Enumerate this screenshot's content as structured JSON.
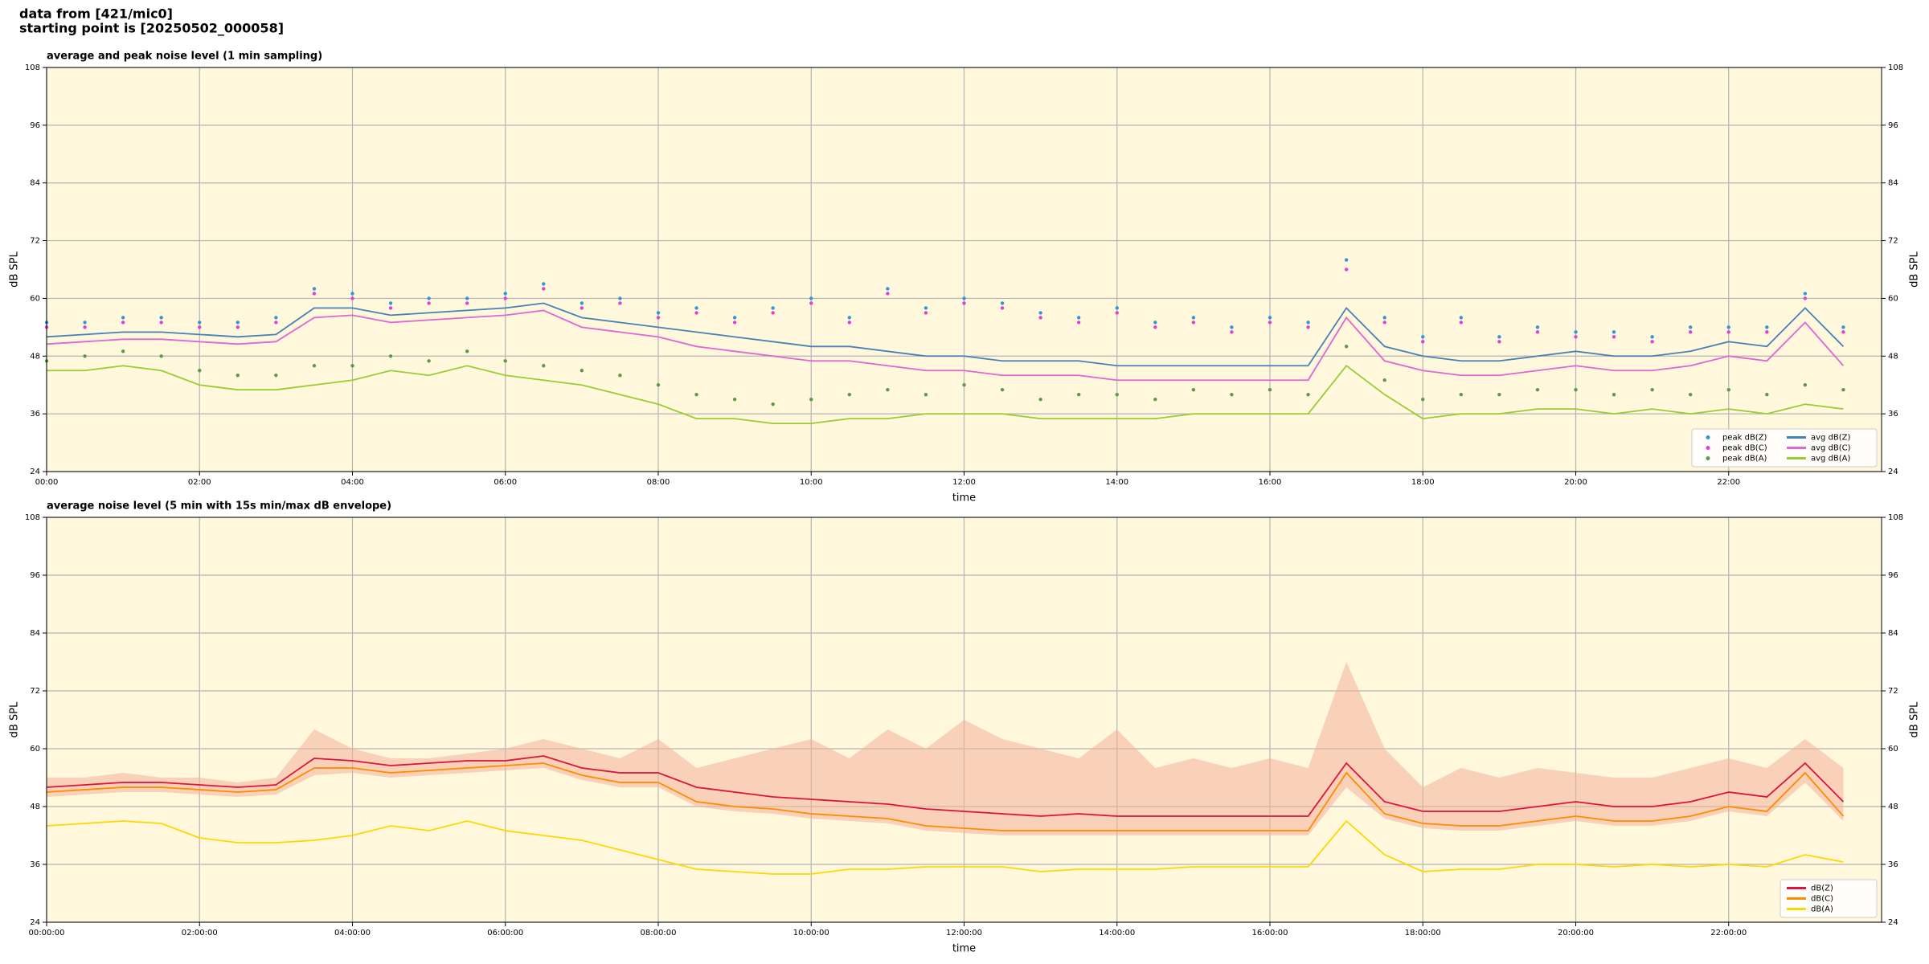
{
  "header": {
    "line1": "data from [421/mic0]",
    "line2": "starting point is [20250502_000058]"
  },
  "chart_data": [
    {
      "type": "line",
      "title": "average and peak noise level (1 min sampling)",
      "x_label": "time",
      "y_label": "dB SPL",
      "xlim": [
        0,
        24
      ],
      "ylim": [
        24,
        108
      ],
      "yticks": [
        24,
        36,
        48,
        60,
        72,
        84,
        96,
        108
      ],
      "xticks": [
        {
          "value": 0,
          "label": "00:00"
        },
        {
          "value": 2,
          "label": "02:00"
        },
        {
          "value": 4,
          "label": "04:00"
        },
        {
          "value": 6,
          "label": "06:00"
        },
        {
          "value": 8,
          "label": "08:00"
        },
        {
          "value": 10,
          "label": "10:00"
        },
        {
          "value": 12,
          "label": "12:00"
        },
        {
          "value": 14,
          "label": "14:00"
        },
        {
          "value": 16,
          "label": "16:00"
        },
        {
          "value": 18,
          "label": "18:00"
        },
        {
          "value": 20,
          "label": "20:00"
        },
        {
          "value": 22,
          "label": "22:00"
        }
      ],
      "grid": true,
      "legend": "lower right",
      "legend_columns": 2,
      "background": "#fff8dc",
      "x": [
        0,
        0.5,
        1,
        1.5,
        2,
        2.5,
        3,
        3.5,
        4,
        4.5,
        5,
        5.5,
        6,
        6.5,
        7,
        7.5,
        8,
        8.5,
        9,
        9.5,
        10,
        10.5,
        11,
        11.5,
        12,
        12.5,
        13,
        13.5,
        14,
        14.5,
        15,
        15.5,
        16,
        16.5,
        17,
        17.5,
        18,
        18.5,
        19,
        19.5,
        20,
        20.5,
        21,
        21.5,
        22,
        22.5,
        23,
        23.5
      ],
      "series": [
        {
          "name": "peak dB(Z)",
          "mark": "point",
          "color": "#2c9ad8",
          "values": [
            55,
            55,
            56,
            56,
            55,
            55,
            56,
            62,
            61,
            59,
            60,
            60,
            61,
            63,
            59,
            60,
            57,
            58,
            56,
            58,
            60,
            56,
            62,
            58,
            60,
            59,
            57,
            56,
            58,
            55,
            56,
            54,
            56,
            55,
            68,
            56,
            52,
            56,
            52,
            54,
            53,
            53,
            52,
            54,
            54,
            54,
            61,
            54
          ]
        },
        {
          "name": "peak dB(C)",
          "mark": "point",
          "color": "#e040d8",
          "values": [
            54,
            54,
            55,
            55,
            54,
            54,
            55,
            61,
            60,
            58,
            59,
            59,
            60,
            62,
            58,
            59,
            56,
            57,
            55,
            57,
            59,
            55,
            61,
            57,
            59,
            58,
            56,
            55,
            57,
            54,
            55,
            53,
            55,
            54,
            66,
            55,
            51,
            55,
            51,
            53,
            52,
            52,
            51,
            53,
            53,
            53,
            60,
            53
          ]
        },
        {
          "name": "peak dB(A)",
          "mark": "point",
          "color": "#5a9a4a",
          "values": [
            47,
            48,
            49,
            48,
            45,
            44,
            44,
            46,
            46,
            48,
            47,
            49,
            47,
            46,
            45,
            44,
            42,
            40,
            39,
            38,
            39,
            40,
            41,
            40,
            42,
            41,
            39,
            40,
            40,
            39,
            41,
            40,
            41,
            40,
            50,
            43,
            39,
            40,
            40,
            41,
            41,
            40,
            41,
            40,
            41,
            40,
            42,
            41
          ]
        },
        {
          "name": "avg dB(Z)",
          "mark": "line",
          "color": "#4682b4",
          "values": [
            52,
            52.5,
            53,
            53,
            52.5,
            52,
            52.5,
            58,
            58,
            56.5,
            57,
            57.5,
            58,
            59,
            56,
            55,
            54,
            53,
            52,
            51,
            50,
            50,
            49,
            48,
            48,
            47,
            47,
            47,
            46,
            46,
            46,
            46,
            46,
            46,
            58,
            50,
            48,
            47,
            47,
            48,
            49,
            48,
            48,
            49,
            51,
            50,
            58,
            50
          ]
        },
        {
          "name": "avg dB(C)",
          "mark": "line",
          "color": "#e066d0",
          "values": [
            50.5,
            51,
            51.5,
            51.5,
            51,
            50.5,
            51,
            56,
            56.5,
            55,
            55.5,
            56,
            56.5,
            57.5,
            54,
            53,
            52,
            50,
            49,
            48,
            47,
            47,
            46,
            45,
            45,
            44,
            44,
            44,
            43,
            43,
            43,
            43,
            43,
            43,
            56,
            47,
            45,
            44,
            44,
            45,
            46,
            45,
            45,
            46,
            48,
            47,
            55,
            46
          ]
        },
        {
          "name": "avg dB(A)",
          "mark": "line",
          "color": "#9acd32",
          "values": [
            45,
            45,
            46,
            45,
            42,
            41,
            41,
            42,
            43,
            45,
            44,
            46,
            44,
            43,
            42,
            40,
            38,
            35,
            35,
            34,
            34,
            35,
            35,
            36,
            36,
            36,
            35,
            35,
            35,
            35,
            36,
            36,
            36,
            36,
            46,
            40,
            35,
            36,
            36,
            37,
            37,
            36,
            37,
            36,
            37,
            36,
            38,
            37
          ]
        }
      ]
    },
    {
      "type": "line",
      "title": "average noise level (5 min with 15s min/max dB envelope)",
      "x_label": "time",
      "y_label": "dB SPL",
      "xlim": [
        0,
        24
      ],
      "ylim": [
        24,
        108
      ],
      "yticks": [
        24,
        36,
        48,
        60,
        72,
        84,
        96,
        108
      ],
      "xticks": [
        {
          "value": 0,
          "label": "00:00:00"
        },
        {
          "value": 2,
          "label": "02:00:00"
        },
        {
          "value": 4,
          "label": "04:00:00"
        },
        {
          "value": 6,
          "label": "06:00:00"
        },
        {
          "value": 8,
          "label": "08:00:00"
        },
        {
          "value": 10,
          "label": "10:00:00"
        },
        {
          "value": 12,
          "label": "12:00:00"
        },
        {
          "value": 14,
          "label": "14:00:00"
        },
        {
          "value": 16,
          "label": "16:00:00"
        },
        {
          "value": 18,
          "label": "18:00:00"
        },
        {
          "value": 20,
          "label": "20:00:00"
        },
        {
          "value": 22,
          "label": "22:00:00"
        }
      ],
      "grid": true,
      "legend": "lower right",
      "legend_columns": 1,
      "background": "#fff8dc",
      "x": [
        0,
        0.5,
        1,
        1.5,
        2,
        2.5,
        3,
        3.5,
        4,
        4.5,
        5,
        5.5,
        6,
        6.5,
        7,
        7.5,
        8,
        8.5,
        9,
        9.5,
        10,
        10.5,
        11,
        11.5,
        12,
        12.5,
        13,
        13.5,
        14,
        14.5,
        15,
        15.5,
        16,
        16.5,
        17,
        17.5,
        18,
        18.5,
        19,
        19.5,
        20,
        20.5,
        21,
        21.5,
        22,
        22.5,
        23,
        23.5
      ],
      "envelope": {
        "color": "#f4b09a",
        "low": [
          50,
          50.5,
          51,
          51,
          50.5,
          50,
          50.5,
          54.5,
          55,
          54,
          54.5,
          55,
          55.5,
          56,
          53.5,
          52,
          52,
          48,
          47,
          46.5,
          45.5,
          45,
          44.5,
          43,
          42.5,
          42,
          42,
          42,
          42,
          42,
          42,
          42,
          42,
          42,
          52,
          45.5,
          43.5,
          43,
          43,
          44,
          45,
          44,
          44,
          45,
          47,
          46,
          53,
          45
        ],
        "high": [
          54,
          54,
          55,
          54,
          54,
          53,
          54,
          64,
          60,
          58,
          58,
          59,
          60,
          62,
          60,
          58,
          62,
          56,
          58,
          60,
          62,
          58,
          64,
          60,
          66,
          62,
          60,
          58,
          64,
          56,
          58,
          56,
          58,
          56,
          78,
          60,
          52,
          56,
          54,
          56,
          55,
          54,
          54,
          56,
          58,
          56,
          62,
          56
        ]
      },
      "series": [
        {
          "name": "dB(Z)",
          "mark": "line",
          "color": "#dc143c",
          "values": [
            52,
            52.5,
            53,
            53,
            52.5,
            52,
            52.5,
            58,
            57.5,
            56.5,
            57,
            57.5,
            57.5,
            58.5,
            56,
            55,
            55,
            52,
            51,
            50,
            49.5,
            49,
            48.5,
            47.5,
            47,
            46.5,
            46,
            46.5,
            46,
            46,
            46,
            46,
            46,
            46,
            57,
            49,
            47,
            47,
            47,
            48,
            49,
            48,
            48,
            49,
            51,
            50,
            57,
            49
          ]
        },
        {
          "name": "dB(C)",
          "mark": "line",
          "color": "#ff8c00",
          "values": [
            51,
            51.5,
            52,
            52,
            51.5,
            51,
            51.5,
            56,
            56,
            55,
            55.5,
            56,
            56.5,
            57,
            54.5,
            53,
            53,
            49,
            48,
            47.5,
            46.5,
            46,
            45.5,
            44,
            43.5,
            43,
            43,
            43,
            43,
            43,
            43,
            43,
            43,
            43,
            55,
            46.5,
            44.5,
            44,
            44,
            45,
            46,
            45,
            45,
            46,
            48,
            47,
            55,
            46
          ]
        },
        {
          "name": "dB(A)",
          "mark": "line",
          "color": "#ffd700",
          "values": [
            44,
            44.5,
            45,
            44.5,
            41.5,
            40.5,
            40.5,
            41,
            42,
            44,
            43,
            45,
            43,
            42,
            41,
            39,
            37,
            35,
            34.5,
            34,
            34,
            35,
            35,
            35.5,
            35.5,
            35.5,
            34.5,
            35,
            35,
            35,
            35.5,
            35.5,
            35.5,
            35.5,
            45,
            38,
            34.5,
            35,
            35,
            36,
            36,
            35.5,
            36,
            35.5,
            36,
            35.5,
            38,
            36.5
          ]
        }
      ]
    }
  ]
}
